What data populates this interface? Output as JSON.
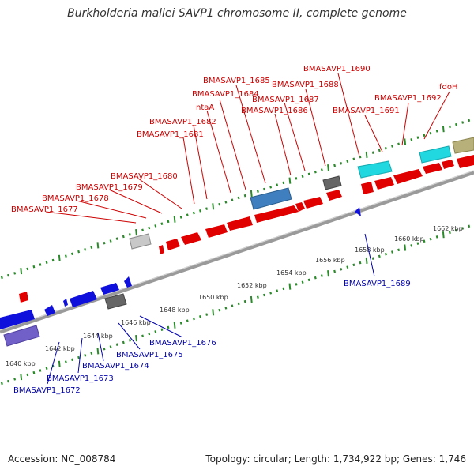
{
  "title": "Burkholderia mallei SAVP1 chromosome II, complete genome",
  "footer": {
    "accession": "Accession: NC_008784",
    "stats": "Topology: circular; Length: 1,734,922 bp; Genes: 1,746"
  },
  "colors": {
    "forward_gene": "#e00000",
    "reverse_gene": "#1010dd",
    "backbone": "#9a9a9a",
    "tick": "#2a8a2a",
    "label_red": "#cc0000",
    "label_blue": "#0000aa"
  },
  "scale_labels": [
    "1640 kbp",
    "1642 kbp",
    "1644 kbp",
    "1646 kbp",
    "1648 kbp",
    "1650 kbp",
    "1652 kbp",
    "1654 kbp",
    "1656 kbp",
    "1658 kbp",
    "1660 kbp",
    "1662 kbp"
  ],
  "forward_labels": [
    "BMASAVP1_1677",
    "BMASAVP1_1678",
    "BMASAVP1_1679",
    "BMASAVP1_1680",
    "BMASAVP1_1681",
    "BMASAVP1_1682",
    "ntaA",
    "BMASAVP1_1684",
    "BMASAVP1_1685",
    "BMASAVP1_1686",
    "BMASAVP1_1687",
    "BMASAVP1_1688",
    "BMASAVP1_1690",
    "BMASAVP1_1691",
    "BMASAVP1_1692",
    "fdoH"
  ],
  "reverse_labels": [
    "BMASAVP1_1672",
    "BMASAVP1_1673",
    "BMASAVP1_1674",
    "BMASAVP1_1675",
    "BMASAVP1_1676",
    "BMASAVP1_1689"
  ]
}
